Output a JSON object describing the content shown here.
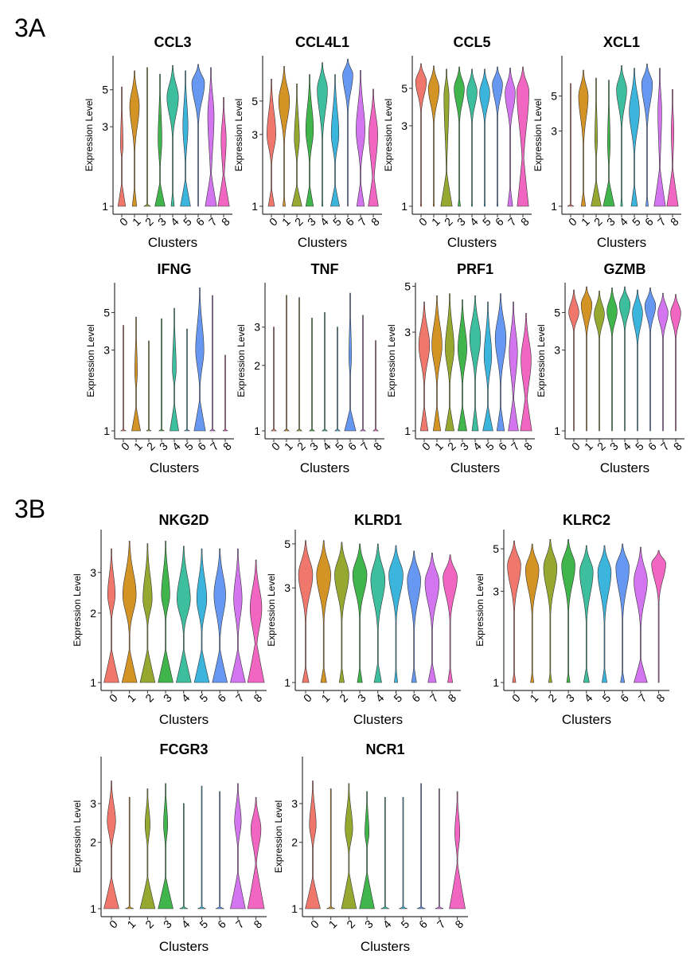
{
  "figure_labels": [
    "3A",
    "3B"
  ],
  "colors": [
    "#F0776C",
    "#D39425",
    "#96A82F",
    "#3FB54B",
    "#3DBE9E",
    "#3CB5DD",
    "#6698F2",
    "#D275EE",
    "#F066C0"
  ],
  "violin_param_order": [
    "zero_peak_width",
    "zero_peak_height_log",
    "upper_mode",
    "upper_mode_width",
    "upper_mode_low",
    "max"
  ],
  "chart_data": [
    {
      "type": "violin",
      "title": "CCL3",
      "ylabel": "Expression Level",
      "xlabel": "Clusters",
      "categories": [
        "0",
        "1",
        "2",
        "3",
        "4",
        "5",
        "6",
        "7",
        "8"
      ],
      "yticks": [
        1,
        3,
        5
      ],
      "ylim": [
        1,
        8
      ],
      "yscale": "log",
      "violins": [
        [
          0.6,
          0.35,
          2.3,
          0.2,
          1.8,
          5.2
        ],
        [
          0.35,
          0.3,
          4,
          0.75,
          2,
          6.5
        ],
        [
          0.5,
          0.03,
          1,
          0,
          1,
          6.8
        ],
        [
          0.8,
          0.35,
          2.5,
          0.3,
          1.5,
          6.2
        ],
        [
          0.25,
          0.25,
          4.5,
          0.9,
          2.5,
          7
        ],
        [
          0.8,
          0.4,
          3,
          0.4,
          1.6,
          6.5
        ],
        [
          0,
          0.3,
          5.5,
          1,
          3,
          7.1
        ],
        [
          0.9,
          0.5,
          3.5,
          0.5,
          1.2,
          6.8
        ],
        [
          0.9,
          0.5,
          2.5,
          0.4,
          1.2,
          4.5
        ]
      ]
    },
    {
      "type": "violin",
      "title": "CCL4L1",
      "ylabel": "Expression Level",
      "xlabel": "Clusters",
      "categories": [
        "0",
        "1",
        "2",
        "3",
        "4",
        "5",
        "6",
        "7",
        "8"
      ],
      "yticks": [
        1,
        3,
        5
      ],
      "ylim": [
        1,
        10
      ],
      "yscale": "log",
      "violins": [
        [
          0.5,
          0.3,
          3,
          0.7,
          1.8,
          7
        ],
        [
          0.2,
          0.2,
          5,
          0.85,
          2.5,
          8.5
        ],
        [
          0.8,
          0.35,
          2.8,
          0.4,
          1.8,
          6.5
        ],
        [
          0.6,
          0.35,
          3.2,
          0.6,
          1.8,
          7.5
        ],
        [
          0.1,
          0.2,
          6,
          0.8,
          2.6,
          9
        ],
        [
          0.7,
          0.35,
          3,
          0.6,
          1.8,
          7.5
        ],
        [
          0,
          0.3,
          7.5,
          0.8,
          4,
          9.5
        ],
        [
          0.6,
          0.4,
          3.2,
          0.7,
          1.6,
          8
        ],
        [
          0.8,
          0.55,
          3,
          0.7,
          1.2,
          6
        ]
      ]
    },
    {
      "type": "violin",
      "title": "CCL5",
      "ylabel": "Expression Level",
      "xlabel": "Clusters",
      "categories": [
        "0",
        "1",
        "2",
        "3",
        "4",
        "5",
        "6",
        "7",
        "8"
      ],
      "yticks": [
        1,
        3,
        5
      ],
      "ylim": [
        1,
        7.8
      ],
      "yscale": "log",
      "violins": [
        [
          0.1,
          0.15,
          5.5,
          0.85,
          3.5,
          7
        ],
        [
          0.1,
          0.15,
          5,
          0.85,
          3,
          6.8
        ],
        [
          0.9,
          0.5,
          4.5,
          0.4,
          1.3,
          6.5
        ],
        [
          0.2,
          0.15,
          5,
          0.8,
          3,
          6.7
        ],
        [
          0.1,
          0.15,
          4.8,
          0.8,
          3,
          6.5
        ],
        [
          0.1,
          0.15,
          4.7,
          0.8,
          3,
          6.5
        ],
        [
          0.1,
          0.15,
          5.3,
          0.8,
          3.3,
          6.7
        ],
        [
          0.4,
          0.3,
          4.7,
          0.8,
          2.7,
          6.6
        ],
        [
          0.9,
          0.8,
          4.8,
          0.95,
          1.5,
          6.7
        ]
      ]
    },
    {
      "type": "violin",
      "title": "XCL1",
      "ylabel": "Expression Level",
      "xlabel": "Clusters",
      "categories": [
        "0",
        "1",
        "2",
        "3",
        "4",
        "5",
        "6",
        "7",
        "8"
      ],
      "yticks": [
        1,
        3,
        5
      ],
      "ylim": [
        1,
        9
      ],
      "yscale": "log",
      "violins": [
        [
          0.5,
          0.02,
          1,
          0,
          1,
          6
        ],
        [
          0.35,
          0.25,
          5,
          0.75,
          2.3,
          7.3
        ],
        [
          0.8,
          0.4,
          2.6,
          0.2,
          1.8,
          6.5
        ],
        [
          0.9,
          0.4,
          2.5,
          0.2,
          1.5,
          6.3
        ],
        [
          0.15,
          0.2,
          5.5,
          0.8,
          3,
          7.8
        ],
        [
          0.5,
          0.35,
          4,
          0.8,
          2,
          7.5
        ],
        [
          0.2,
          0.2,
          6,
          0.85,
          3,
          8
        ],
        [
          0.9,
          0.6,
          4,
          0.3,
          1.3,
          7.5
        ],
        [
          0.9,
          0.6,
          3,
          0.2,
          1.4,
          5.5
        ]
      ]
    },
    {
      "type": "violin",
      "title": "IFNG",
      "ylabel": "Expression Level",
      "xlabel": "Clusters",
      "categories": [
        "0",
        "1",
        "2",
        "3",
        "4",
        "5",
        "6",
        "7",
        "8"
      ],
      "yticks": [
        1,
        3,
        5
      ],
      "ylim": [
        1,
        7.5
      ],
      "yscale": "log",
      "violins": [
        [
          0.4,
          0.02,
          1,
          0,
          1,
          4.2
        ],
        [
          0.7,
          0.35,
          2.2,
          0.2,
          1.6,
          4.7
        ],
        [
          0.4,
          0.02,
          1,
          0,
          1,
          3.4
        ],
        [
          0.4,
          0.02,
          1,
          0,
          1,
          4.6
        ],
        [
          0.7,
          0.4,
          2.3,
          0.3,
          1.7,
          5.3
        ],
        [
          0.4,
          0.02,
          1,
          0,
          1,
          4
        ],
        [
          0.9,
          0.45,
          3,
          0.65,
          1.7,
          7
        ],
        [
          0.4,
          0.02,
          1,
          0,
          1,
          6.3
        ],
        [
          0.4,
          0.02,
          1,
          0,
          1,
          2.8
        ]
      ]
    },
    {
      "type": "violin",
      "title": "TNF",
      "ylabel": "Expression Level",
      "xlabel": "Clusters",
      "categories": [
        "0",
        "1",
        "2",
        "3",
        "4",
        "5",
        "6",
        "7",
        "8"
      ],
      "yticks": [
        1,
        2,
        3
      ],
      "ylim": [
        1,
        4.8
      ],
      "yscale": "log",
      "violins": [
        [
          0.4,
          0.02,
          1,
          0,
          1,
          3
        ],
        [
          0.4,
          0.02,
          1,
          0,
          1,
          4.2
        ],
        [
          0.4,
          0.02,
          1,
          0,
          1,
          4.1
        ],
        [
          0.4,
          0.02,
          1,
          0,
          1,
          3.3
        ],
        [
          0.4,
          0.02,
          1,
          0,
          1,
          3.5
        ],
        [
          0.4,
          0.02,
          1,
          0,
          1,
          3
        ],
        [
          0.9,
          0.25,
          2.2,
          0.2,
          1.6,
          4.3
        ],
        [
          0.4,
          0.02,
          1,
          0,
          1,
          3.4
        ],
        [
          0.4,
          0.02,
          1,
          0,
          1,
          2.6
        ]
      ]
    },
    {
      "type": "violin",
      "title": "PRF1",
      "ylabel": "Expression Level",
      "xlabel": "Clusters",
      "categories": [
        "0",
        "1",
        "2",
        "3",
        "4",
        "5",
        "6",
        "7",
        "8"
      ],
      "yticks": [
        1,
        3,
        5
      ],
      "ylim": [
        1,
        5.2
      ],
      "yscale": "log",
      "violins": [
        [
          0.6,
          0.3,
          2.6,
          0.85,
          1.6,
          4.2
        ],
        [
          0.6,
          0.3,
          2.6,
          0.8,
          1.6,
          4.5
        ],
        [
          0.7,
          0.3,
          2.5,
          0.7,
          1.6,
          4.6
        ],
        [
          0.7,
          0.3,
          2.5,
          0.7,
          1.6,
          4.3
        ],
        [
          0.5,
          0.3,
          2.8,
          0.85,
          1.7,
          4.5
        ],
        [
          0.8,
          0.3,
          2.3,
          0.6,
          1.5,
          4.2
        ],
        [
          0.6,
          0.3,
          2.8,
          0.85,
          1.6,
          4.6
        ],
        [
          0.8,
          0.4,
          2.4,
          0.65,
          1.3,
          4.2
        ],
        [
          0.9,
          0.45,
          2.2,
          0.8,
          1.2,
          3.7
        ]
      ]
    },
    {
      "type": "violin",
      "title": "GZMB",
      "ylabel": "Expression Level",
      "xlabel": "Clusters",
      "categories": [
        "0",
        "1",
        "2",
        "3",
        "4",
        "5",
        "6",
        "7",
        "8"
      ],
      "yticks": [
        1,
        3,
        5
      ],
      "ylim": [
        1,
        7.5
      ],
      "yscale": "log",
      "violins": [
        [
          0,
          0.2,
          5,
          0.8,
          3.8,
          6.8
        ],
        [
          0,
          0.2,
          5.6,
          0.85,
          3.5,
          7.1
        ],
        [
          0,
          0.2,
          4.9,
          0.8,
          3.4,
          6.7
        ],
        [
          0,
          0.2,
          5.1,
          0.8,
          3.5,
          7
        ],
        [
          0,
          0.2,
          5.6,
          0.85,
          3.8,
          7.1
        ],
        [
          0,
          0.2,
          5,
          0.8,
          3.1,
          6.8
        ],
        [
          0,
          0.2,
          5.5,
          0.85,
          3.7,
          7
        ],
        [
          0,
          0.2,
          5,
          0.8,
          3.4,
          6.5
        ],
        [
          0,
          0.2,
          5,
          0.8,
          3.4,
          6.4
        ]
      ]
    },
    {
      "type": "violin",
      "title": "NKG2D",
      "ylabel": "Expression Level",
      "xlabel": "Clusters",
      "categories": [
        "0",
        "1",
        "2",
        "3",
        "4",
        "5",
        "6",
        "7",
        "8"
      ],
      "yticks": [
        1,
        2,
        3
      ],
      "ylim": [
        1,
        4.6
      ],
      "yscale": "log",
      "violins": [
        [
          0.9,
          0.35,
          2.4,
          0.45,
          1.8,
          3.8
        ],
        [
          0.9,
          0.35,
          2.4,
          0.8,
          1.6,
          4.1
        ],
        [
          0.9,
          0.35,
          2.3,
          0.55,
          1.7,
          4
        ],
        [
          0.9,
          0.35,
          2.4,
          0.5,
          1.8,
          4.1
        ],
        [
          0.9,
          0.35,
          2.3,
          0.8,
          1.6,
          3.9
        ],
        [
          0.9,
          0.35,
          2.3,
          0.6,
          1.6,
          3.8
        ],
        [
          0.9,
          0.35,
          2.4,
          0.7,
          1.5,
          3.8
        ],
        [
          0.9,
          0.35,
          2.3,
          0.5,
          1.5,
          3.8
        ],
        [
          1,
          0.45,
          2.1,
          0.7,
          1.3,
          3.4
        ]
      ]
    },
    {
      "type": "violin",
      "title": "KLRD1",
      "ylabel": "Expression Level",
      "xlabel": "Clusters",
      "categories": [
        "0",
        "1",
        "2",
        "3",
        "4",
        "5",
        "6",
        "7",
        "8"
      ],
      "yticks": [
        1,
        3,
        5
      ],
      "ylim": [
        1,
        5.9
      ],
      "yscale": "log",
      "violins": [
        [
          0.4,
          0.2,
          3.5,
          0.85,
          2,
          5.2
        ],
        [
          0.35,
          0.2,
          3.5,
          0.85,
          2,
          5.2
        ],
        [
          0.3,
          0.2,
          3.5,
          0.85,
          2,
          5.1
        ],
        [
          0.3,
          0.2,
          3.5,
          0.85,
          2.1,
          5
        ],
        [
          0.45,
          0.25,
          3.3,
          0.85,
          1.8,
          5
        ],
        [
          0.2,
          0.2,
          3.5,
          0.85,
          2,
          4.9
        ],
        [
          0.3,
          0.2,
          3.3,
          0.8,
          1.8,
          4.6
        ],
        [
          0.5,
          0.25,
          3.2,
          0.85,
          1.8,
          4.5
        ],
        [
          0.3,
          0.2,
          3.4,
          0.85,
          2,
          4.4
        ]
      ]
    },
    {
      "type": "violin",
      "title": "KLRC2",
      "ylabel": "Expression Level",
      "xlabel": "Clusters",
      "categories": [
        "0",
        "1",
        "2",
        "3",
        "4",
        "5",
        "6",
        "7",
        "8"
      ],
      "yticks": [
        1,
        3,
        5
      ],
      "ylim": [
        1,
        6.3
      ],
      "yscale": "log",
      "violins": [
        [
          0.2,
          0.15,
          4.1,
          0.8,
          2.3,
          5.5
        ],
        [
          0.2,
          0.15,
          3.9,
          0.8,
          2.2,
          5.3
        ],
        [
          0.2,
          0.15,
          4,
          0.8,
          2.2,
          5.6
        ],
        [
          0.2,
          0.15,
          4.1,
          0.8,
          2.3,
          5.6
        ],
        [
          0.35,
          0.2,
          3.8,
          0.8,
          2,
          5.2
        ],
        [
          0.3,
          0.2,
          3.8,
          0.8,
          2,
          5.2
        ],
        [
          0.25,
          0.15,
          4,
          0.8,
          2.1,
          5.3
        ],
        [
          0.8,
          0.3,
          3.4,
          0.8,
          1.9,
          5.1
        ],
        [
          0,
          0.1,
          4.2,
          0.85,
          2.6,
          4.9
        ]
      ]
    },
    {
      "type": "violin",
      "title": "FCGR3",
      "ylabel": "Expression Level",
      "xlabel": "Clusters",
      "categories": [
        "0",
        "1",
        "2",
        "3",
        "4",
        "5",
        "6",
        "7",
        "8"
      ],
      "yticks": [
        1,
        2,
        3
      ],
      "ylim": [
        1,
        4.9
      ],
      "yscale": "log",
      "violins": [
        [
          0.9,
          0.35,
          2.5,
          0.5,
          1.8,
          3.8
        ],
        [
          0.5,
          0.02,
          1,
          0,
          1,
          3.2
        ],
        [
          0.9,
          0.35,
          2.4,
          0.3,
          1.8,
          3.5
        ],
        [
          0.9,
          0.35,
          2.4,
          0.25,
          1.8,
          3.7
        ],
        [
          0.5,
          0.02,
          1,
          0,
          1,
          3
        ],
        [
          0.5,
          0.02,
          1,
          0,
          1,
          3.6
        ],
        [
          0.5,
          0.02,
          1,
          0,
          1,
          3.4
        ],
        [
          0.9,
          0.4,
          2.5,
          0.4,
          1.8,
          3.7
        ],
        [
          1,
          0.5,
          2.3,
          0.6,
          1.5,
          3.2
        ]
      ]
    },
    {
      "type": "violin",
      "title": "NCR1",
      "ylabel": "Expression Level",
      "xlabel": "Clusters",
      "categories": [
        "0",
        "1",
        "2",
        "3",
        "4",
        "5",
        "6",
        "7",
        "8"
      ],
      "yticks": [
        1,
        2,
        3
      ],
      "ylim": [
        1,
        4.9
      ],
      "yscale": "log",
      "violins": [
        [
          0.9,
          0.35,
          2.4,
          0.4,
          1.8,
          3.8
        ],
        [
          0.5,
          0.02,
          1,
          0,
          1,
          3.5
        ],
        [
          0.9,
          0.4,
          2.3,
          0.45,
          1.7,
          3.7
        ],
        [
          0.9,
          0.4,
          2.2,
          0.25,
          1.8,
          3.4
        ],
        [
          0.5,
          0.02,
          1,
          0,
          1,
          3.2
        ],
        [
          0.5,
          0.02,
          1,
          0,
          1,
          3.2
        ],
        [
          0.5,
          0.02,
          1,
          0,
          1,
          3.7
        ],
        [
          0.5,
          0.02,
          1,
          0,
          1,
          3.5
        ],
        [
          0.95,
          0.5,
          2.2,
          0.3,
          1.6,
          3.4
        ]
      ]
    }
  ]
}
